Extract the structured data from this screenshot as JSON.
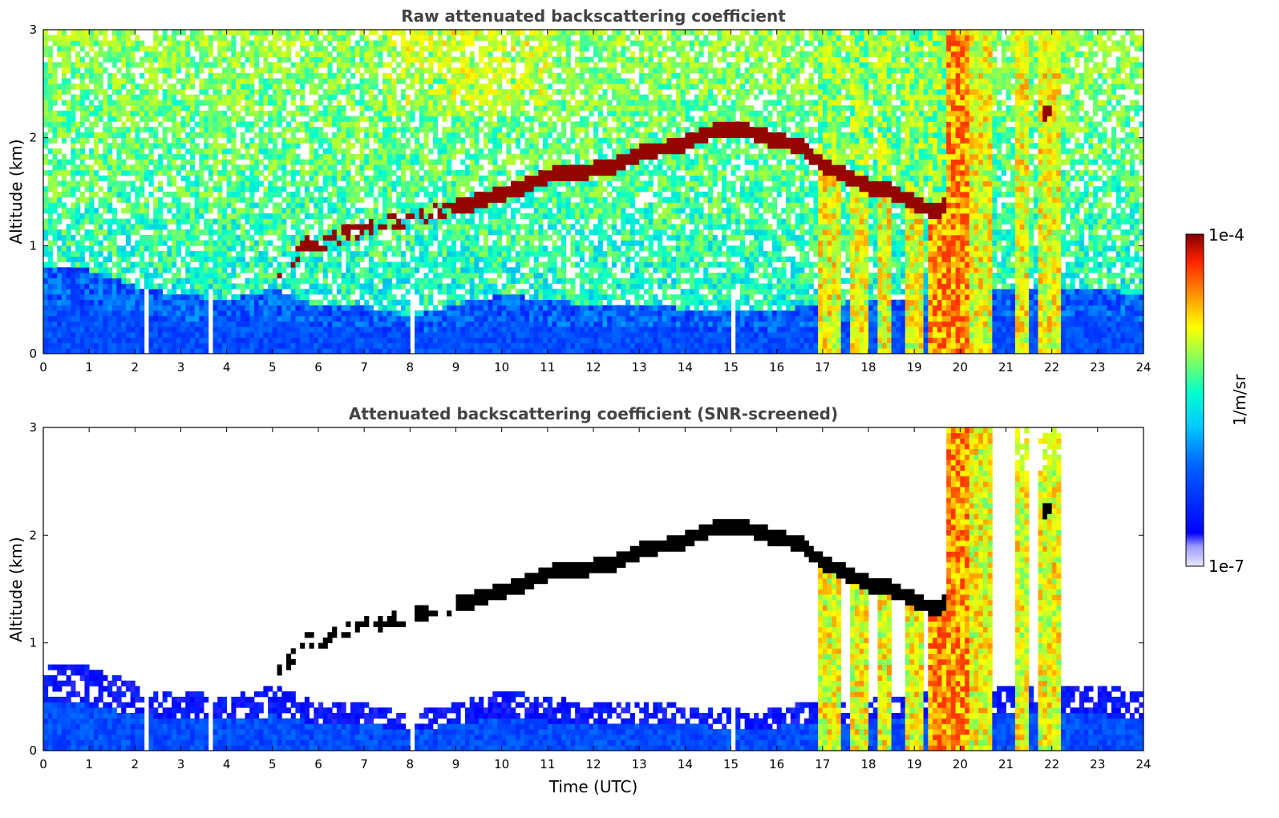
{
  "chart_data": [
    {
      "type": "heatmap",
      "title": "Raw attenuated backscattering coefficient",
      "xlabel": "",
      "ylabel": "Altitude (km)",
      "xlim": [
        0,
        24
      ],
      "ylim": [
        0,
        3
      ],
      "x_ticks": [
        "0",
        "1",
        "2",
        "3",
        "4",
        "5",
        "6",
        "7",
        "8",
        "9",
        "10",
        "11",
        "12",
        "13",
        "14",
        "15",
        "16",
        "17",
        "18",
        "19",
        "20",
        "21",
        "22",
        "23",
        "24"
      ],
      "y_ticks": [
        "0",
        "1",
        "2",
        "3"
      ],
      "x_unit": "hours UTC",
      "y_unit": "km",
      "features": {
        "near_surface_layer_top_km": 0.5,
        "cloud_layer_base_km": [
          [
            5.2,
            0.75
          ],
          [
            5.8,
            1.05
          ],
          [
            6.0,
            1.0
          ],
          [
            6.5,
            1.1
          ],
          [
            9.4,
            1.4
          ],
          [
            10.5,
            1.55
          ],
          [
            11.0,
            1.65
          ],
          [
            12.0,
            1.7
          ],
          [
            12.5,
            1.75
          ],
          [
            13.0,
            1.85
          ],
          [
            14.0,
            1.95
          ],
          [
            14.5,
            2.05
          ],
          [
            15.0,
            2.08
          ],
          [
            15.5,
            2.05
          ],
          [
            16.0,
            1.97
          ],
          [
            16.5,
            1.93
          ],
          [
            17.0,
            1.75
          ],
          [
            17.5,
            1.65
          ],
          [
            18.0,
            1.55
          ],
          [
            18.5,
            1.5
          ],
          [
            19.0,
            1.4
          ],
          [
            19.5,
            1.3
          ],
          [
            21.9,
            2.25
          ]
        ],
        "precipitation_columns_hours": [
          [
            16.9,
            17.4
          ],
          [
            17.6,
            18.0
          ],
          [
            18.2,
            18.5
          ],
          [
            18.8,
            19.2
          ],
          [
            19.3,
            20.7
          ],
          [
            21.2,
            21.5
          ],
          [
            21.7,
            22.2
          ]
        ],
        "data_gaps_hours": [
          2.2,
          3.6,
          8.1,
          15.1,
          16.8
        ]
      }
    },
    {
      "type": "heatmap",
      "title": "Attenuated backscattering coefficient (SNR-screened)",
      "xlabel": "Time (UTC)",
      "ylabel": "Altitude (km)",
      "xlim": [
        0,
        24
      ],
      "ylim": [
        0,
        3
      ],
      "x_ticks": [
        "0",
        "1",
        "2",
        "3",
        "4",
        "5",
        "6",
        "7",
        "8",
        "9",
        "10",
        "11",
        "12",
        "13",
        "14",
        "15",
        "16",
        "17",
        "18",
        "19",
        "20",
        "21",
        "22",
        "23",
        "24"
      ],
      "y_ticks": [
        "0",
        "1",
        "2",
        "3"
      ],
      "x_unit": "hours UTC",
      "y_unit": "km",
      "features": {
        "boundary_layer_top_km": [
          [
            0,
            0.8
          ],
          [
            1,
            0.78
          ],
          [
            2,
            0.62
          ],
          [
            3,
            0.55
          ],
          [
            4,
            0.5
          ],
          [
            5,
            0.6
          ],
          [
            6,
            0.45
          ],
          [
            7,
            0.45
          ],
          [
            8,
            0.35
          ],
          [
            9,
            0.45
          ],
          [
            10,
            0.55
          ],
          [
            11,
            0.5
          ],
          [
            12,
            0.45
          ],
          [
            13,
            0.45
          ],
          [
            14,
            0.42
          ],
          [
            15,
            0.4
          ],
          [
            16,
            0.4
          ],
          [
            16.8,
            0.45
          ],
          [
            20.8,
            0.6
          ],
          [
            22.3,
            0.6
          ],
          [
            23,
            0.6
          ],
          [
            24,
            0.55
          ]
        ]
      }
    }
  ],
  "colorbar": {
    "label": "1/m/sr",
    "min_label": "1e-7",
    "max_label": "1e-4",
    "scale": "log",
    "colormap": [
      "#e8e8ff",
      "#0000ff",
      "#00a0ff",
      "#00ffd0",
      "#a0ff40",
      "#ffff00",
      "#ff9000",
      "#ff2000",
      "#800000"
    ]
  }
}
